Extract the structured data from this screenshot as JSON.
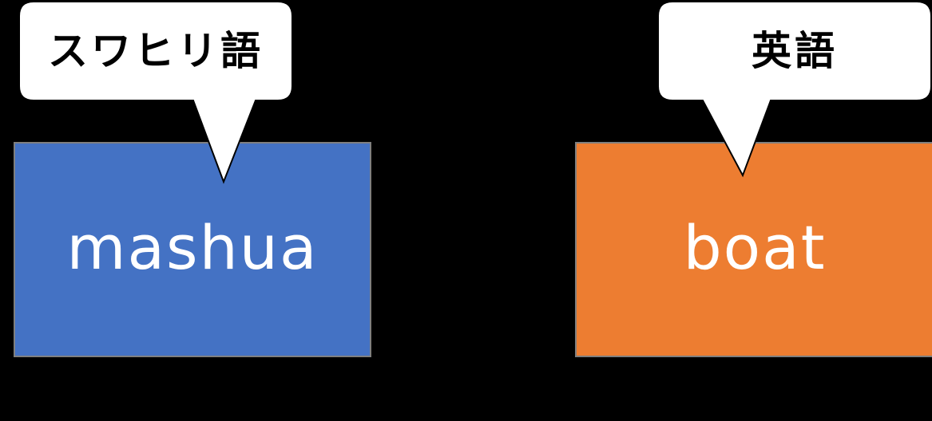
{
  "colors": {
    "background": "#000000",
    "left_box": "#4472c4",
    "right_box": "#ed7d31",
    "box_border": "#7f7f7f",
    "callout_fill": "#ffffff",
    "callout_stroke": "#000000",
    "word_text": "#ffffff",
    "label_text": "#000000"
  },
  "left": {
    "language_label": "スワヒリ語",
    "word": "mashua"
  },
  "right": {
    "language_label": "英語",
    "word": "boat"
  }
}
